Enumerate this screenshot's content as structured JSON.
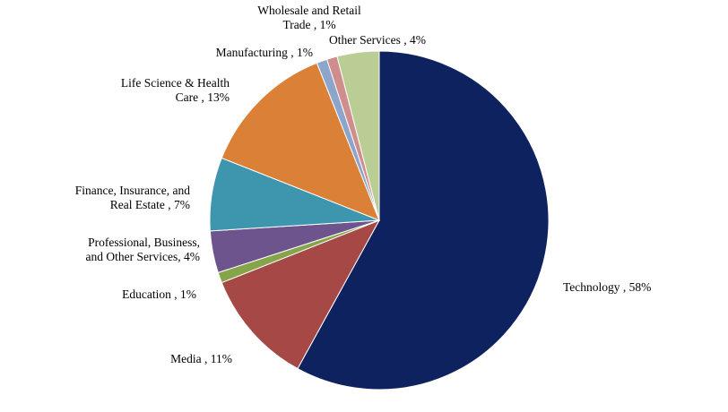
{
  "chart_data": {
    "type": "pie",
    "title": "",
    "start_angle_deg": 0,
    "direction": "clockwise",
    "slices": [
      {
        "name": "Technology",
        "value": 58,
        "color": "#0f2260",
        "label_lines": [
          "Technology , 58%"
        ]
      },
      {
        "name": "Media",
        "value": 11,
        "color": "#a64845",
        "label_lines": [
          "Media , 11%"
        ]
      },
      {
        "name": "Education",
        "value": 1,
        "color": "#86a44a",
        "label_lines": [
          "Education , 1%"
        ]
      },
      {
        "name": "Professional, Business, and Other Services",
        "value": 4,
        "color": "#6e548d",
        "label_lines": [
          "Professional, Business,",
          "and Other Services, 4%"
        ]
      },
      {
        "name": "Finance, Insurance, and Real Estate",
        "value": 7,
        "color": "#3d96ae",
        "label_lines": [
          "Finance, Insurance, and",
          "Real Estate , 7%"
        ]
      },
      {
        "name": "Life Science & Health Care",
        "value": 13,
        "color": "#da8137",
        "label_lines": [
          "Life Science & Health",
          "Care , 13%"
        ]
      },
      {
        "name": "Manufacturing",
        "value": 1,
        "color": "#8ea5cb",
        "label_lines": [
          "Manufacturing , 1%"
        ]
      },
      {
        "name": "Wholesale and Retail Trade",
        "value": 1,
        "color": "#cf8e8d",
        "label_lines": [
          "Wholesale and Retail",
          "Trade , 1%"
        ]
      },
      {
        "name": "Other Services",
        "value": 4,
        "color": "#bacd94",
        "label_lines": [
          "Other Services , 4%"
        ]
      }
    ]
  }
}
